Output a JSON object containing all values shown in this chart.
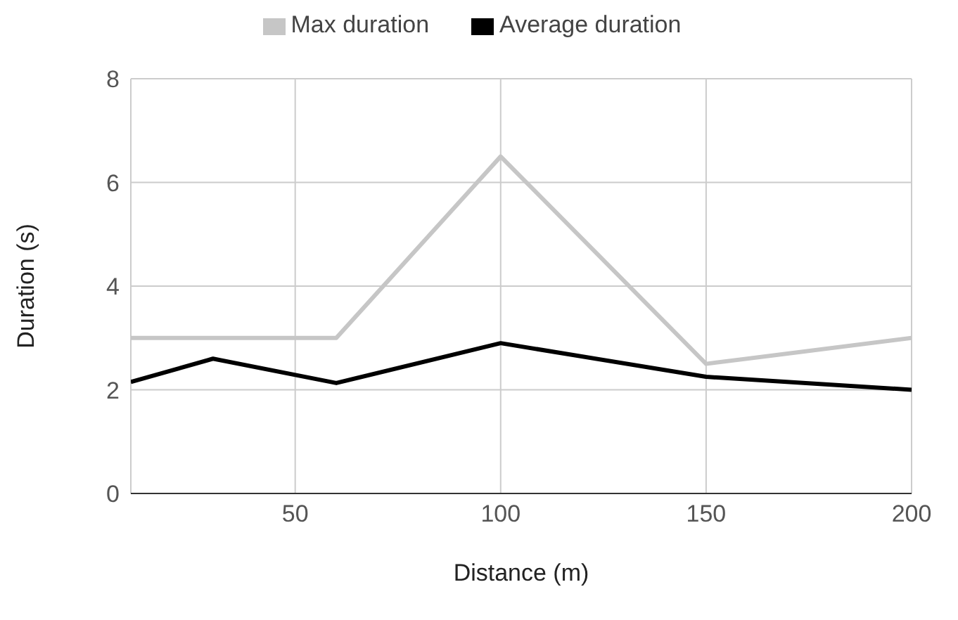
{
  "chart_data": {
    "type": "line",
    "xlabel": "Distance (m)",
    "ylabel": "Duration (s)",
    "xlim": [
      10,
      200
    ],
    "xticks": [
      50,
      100,
      150,
      200
    ],
    "ylim": [
      0,
      8
    ],
    "yticks": [
      0,
      2,
      4,
      6,
      8
    ],
    "grid": true,
    "legend": "top",
    "marker": "none",
    "line_style": "solid",
    "series": [
      {
        "name": "Max duration",
        "color": "#c6c6c6",
        "x": [
          10,
          60,
          100,
          150,
          200
        ],
        "values": [
          3,
          3,
          6.5,
          2.5,
          3
        ]
      },
      {
        "name": "Average duration",
        "color": "#000000",
        "x": [
          10,
          30,
          60,
          100,
          150,
          200
        ],
        "values": [
          2.15,
          2.6,
          2.13,
          2.9,
          2.25,
          2
        ]
      }
    ]
  }
}
